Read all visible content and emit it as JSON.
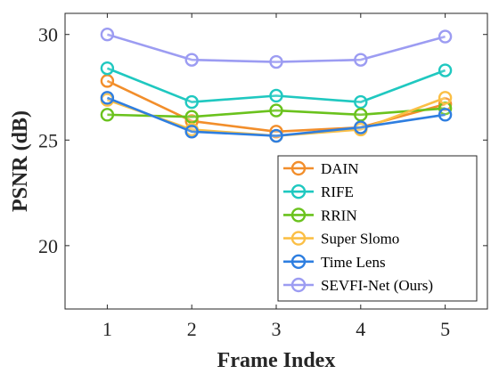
{
  "chart_data": {
    "type": "line",
    "xlabel": "Frame Index",
    "ylabel": "PSNR (dB)",
    "x": [
      1,
      2,
      3,
      4,
      5
    ],
    "xlim": [
      0.5,
      5.5
    ],
    "ylim": [
      17,
      31
    ],
    "xticks": [
      "1",
      "2",
      "3",
      "4",
      "5"
    ],
    "yticks": [
      "20",
      "25",
      "30"
    ],
    "ytick_values": [
      20,
      25,
      30
    ],
    "grid": false,
    "legend_position": "bottom-right",
    "series": [
      {
        "name": "DAIN",
        "color": "#f28e2b",
        "values": [
          27.8,
          25.9,
          25.4,
          25.6,
          26.7
        ]
      },
      {
        "name": "RIFE",
        "color": "#1fc8c0",
        "values": [
          28.4,
          26.8,
          27.1,
          26.8,
          28.3
        ]
      },
      {
        "name": "RRIN",
        "color": "#6ac21d",
        "values": [
          26.2,
          26.1,
          26.4,
          26.2,
          26.5
        ]
      },
      {
        "name": "Super Slomo",
        "color": "#fbbf45",
        "values": [
          26.9,
          25.5,
          25.2,
          25.5,
          27.0
        ]
      },
      {
        "name": "Time Lens",
        "color": "#2e7ee0",
        "values": [
          27.0,
          25.4,
          25.2,
          25.6,
          26.2
        ]
      },
      {
        "name": "SEVFI-Net (Ours)",
        "color": "#9c9cf2",
        "values": [
          30.0,
          28.8,
          28.7,
          28.8,
          29.9
        ]
      }
    ]
  }
}
